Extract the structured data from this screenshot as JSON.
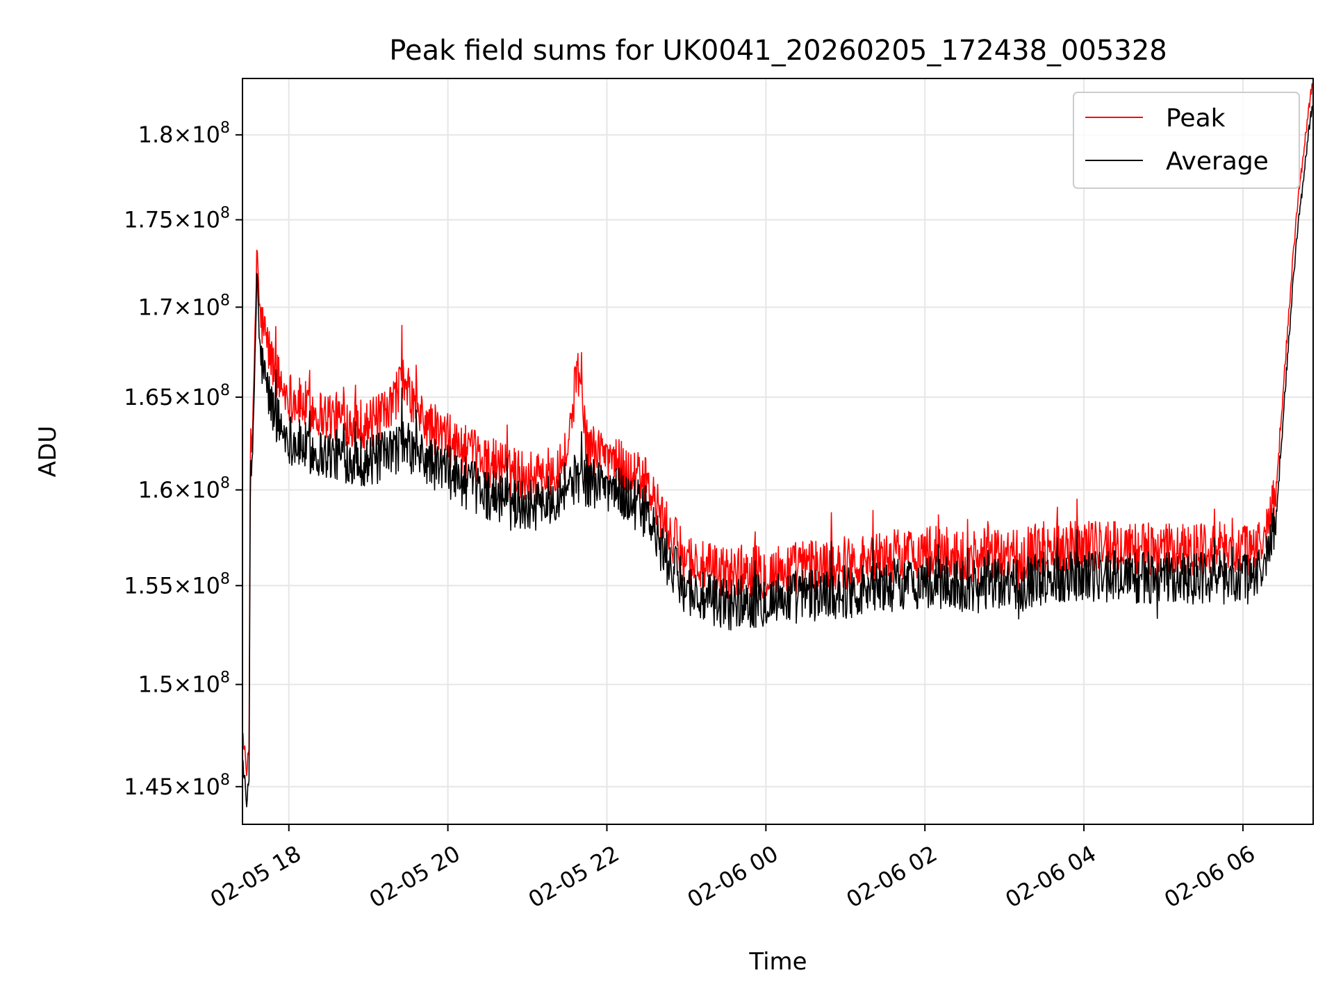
{
  "chart_data": {
    "type": "line",
    "title": "Peak field sums for UK0041_20260205_172438_005328",
    "xlabel": "Time",
    "ylabel": "ADU",
    "x_axis_kind": "datetime",
    "xlim": [
      "2026-02-05 17:25",
      "2026-02-06 06:53"
    ],
    "ylim": [
      143200000,
      183400000
    ],
    "y_scale": "log",
    "grid": true,
    "legend_position": "top-right",
    "x_ticks": [
      {
        "value": "2026-02-05 18:00",
        "label": "02-05 18"
      },
      {
        "value": "2026-02-05 20:00",
        "label": "02-05 20"
      },
      {
        "value": "2026-02-05 22:00",
        "label": "02-05 22"
      },
      {
        "value": "2026-02-06 00:00",
        "label": "02-06 00"
      },
      {
        "value": "2026-02-06 02:00",
        "label": "02-06 02"
      },
      {
        "value": "2026-02-06 04:00",
        "label": "02-06 04"
      },
      {
        "value": "2026-02-06 06:00",
        "label": "02-06 06"
      }
    ],
    "y_ticks": [
      {
        "value": 145000000,
        "mantissa": "1.45",
        "exp": "8"
      },
      {
        "value": 150000000,
        "mantissa": "1.5",
        "exp": "8"
      },
      {
        "value": 155000000,
        "mantissa": "1.55",
        "exp": "8"
      },
      {
        "value": 160000000,
        "mantissa": "1.6",
        "exp": "8"
      },
      {
        "value": 165000000,
        "mantissa": "1.65",
        "exp": "8"
      },
      {
        "value": 170000000,
        "mantissa": "1.7",
        "exp": "8"
      },
      {
        "value": 175000000,
        "mantissa": "1.75",
        "exp": "8"
      },
      {
        "value": 180000000,
        "mantissa": "1.8",
        "exp": "8"
      }
    ],
    "series": [
      {
        "name": "Peak",
        "color": "#ff0000",
        "points": [
          [
            "2026-02-05 17:25",
            147800000
          ],
          [
            "2026-02-05 17:28",
            145500000
          ],
          [
            "2026-02-05 17:30",
            147000000
          ],
          [
            "2026-02-05 17:31",
            164000000
          ],
          [
            "2026-02-05 17:32",
            161500000
          ],
          [
            "2026-02-05 17:34",
            167000000
          ],
          [
            "2026-02-05 17:36",
            173800000
          ],
          [
            "2026-02-05 17:38",
            169500000
          ],
          [
            "2026-02-05 17:42",
            168500000
          ],
          [
            "2026-02-05 17:47",
            167000000
          ],
          [
            "2026-02-05 17:55",
            165500000
          ],
          [
            "2026-02-05 18:05",
            164800000
          ],
          [
            "2026-02-05 18:20",
            164200000
          ],
          [
            "2026-02-05 18:40",
            163800000
          ],
          [
            "2026-02-05 19:00",
            163500000
          ],
          [
            "2026-02-05 19:15",
            164000000
          ],
          [
            "2026-02-05 19:25",
            166000000
          ],
          [
            "2026-02-05 19:40",
            163800000
          ],
          [
            "2026-02-05 20:00",
            162700000
          ],
          [
            "2026-02-05 20:15",
            162000000
          ],
          [
            "2026-02-05 20:30",
            161500000
          ],
          [
            "2026-02-05 20:45",
            161300000
          ],
          [
            "2026-02-05 21:00",
            160700000
          ],
          [
            "2026-02-05 21:15",
            160800000
          ],
          [
            "2026-02-05 21:30",
            162000000
          ],
          [
            "2026-02-05 21:38",
            166700000
          ],
          [
            "2026-02-05 21:45",
            162300000
          ],
          [
            "2026-02-05 22:00",
            162000000
          ],
          [
            "2026-02-05 22:15",
            161000000
          ],
          [
            "2026-02-05 22:30",
            160300000
          ],
          [
            "2026-02-05 22:40",
            158700000
          ],
          [
            "2026-02-05 22:50",
            157300000
          ],
          [
            "2026-02-05 23:00",
            156500000
          ],
          [
            "2026-02-05 23:15",
            155800000
          ],
          [
            "2026-02-05 23:30",
            155700000
          ],
          [
            "2026-02-05 23:45",
            155800000
          ],
          [
            "2026-02-06 00:00",
            155700000
          ],
          [
            "2026-02-06 00:30",
            156000000
          ],
          [
            "2026-02-06 01:00",
            156200000
          ],
          [
            "2026-02-06 01:30",
            156500000
          ],
          [
            "2026-02-06 02:00",
            156800000
          ],
          [
            "2026-02-06 02:30",
            156500000
          ],
          [
            "2026-02-06 03:00",
            156500000
          ],
          [
            "2026-02-06 03:30",
            157000000
          ],
          [
            "2026-02-06 04:00",
            157200000
          ],
          [
            "2026-02-06 04:30",
            157000000
          ],
          [
            "2026-02-06 05:00",
            156800000
          ],
          [
            "2026-02-06 05:30",
            157000000
          ],
          [
            "2026-02-06 06:00",
            156800000
          ],
          [
            "2026-02-06 06:15",
            157200000
          ],
          [
            "2026-02-06 06:25",
            160000000
          ],
          [
            "2026-02-06 06:30",
            165000000
          ],
          [
            "2026-02-06 06:35",
            170000000
          ],
          [
            "2026-02-06 06:40",
            175000000
          ],
          [
            "2026-02-06 06:45",
            178500000
          ],
          [
            "2026-02-06 06:50",
            181800000
          ],
          [
            "2026-02-06 06:53",
            183400000
          ]
        ]
      },
      {
        "name": "Average",
        "color": "#000000",
        "points": [
          [
            "2026-02-05 17:25",
            146500000
          ],
          [
            "2026-02-05 17:28",
            144000000
          ],
          [
            "2026-02-05 17:30",
            145500000
          ],
          [
            "2026-02-05 17:31",
            162000000
          ],
          [
            "2026-02-05 17:32",
            160500000
          ],
          [
            "2026-02-05 17:34",
            165500000
          ],
          [
            "2026-02-05 17:36",
            172500000
          ],
          [
            "2026-02-05 17:38",
            167500000
          ],
          [
            "2026-02-05 17:42",
            166000000
          ],
          [
            "2026-02-05 17:47",
            164500000
          ],
          [
            "2026-02-05 17:55",
            163200000
          ],
          [
            "2026-02-05 18:05",
            162500000
          ],
          [
            "2026-02-05 18:20",
            162000000
          ],
          [
            "2026-02-05 18:40",
            161800000
          ],
          [
            "2026-02-05 19:00",
            161500000
          ],
          [
            "2026-02-05 19:15",
            161800000
          ],
          [
            "2026-02-05 19:25",
            162500000
          ],
          [
            "2026-02-05 19:40",
            161700000
          ],
          [
            "2026-02-05 20:00",
            161000000
          ],
          [
            "2026-02-05 20:15",
            160300000
          ],
          [
            "2026-02-05 20:30",
            159800000
          ],
          [
            "2026-02-05 20:45",
            159500000
          ],
          [
            "2026-02-05 21:00",
            159200000
          ],
          [
            "2026-02-05 21:15",
            159300000
          ],
          [
            "2026-02-05 21:30",
            160400000
          ],
          [
            "2026-02-05 21:38",
            160600000
          ],
          [
            "2026-02-05 21:45",
            160500000
          ],
          [
            "2026-02-05 22:00",
            160300000
          ],
          [
            "2026-02-05 22:15",
            159600000
          ],
          [
            "2026-02-05 22:30",
            158800000
          ],
          [
            "2026-02-05 22:40",
            157000000
          ],
          [
            "2026-02-05 22:50",
            155800000
          ],
          [
            "2026-02-05 23:00",
            154900000
          ],
          [
            "2026-02-05 23:15",
            154200000
          ],
          [
            "2026-02-05 23:30",
            154100000
          ],
          [
            "2026-02-05 23:45",
            154200000
          ],
          [
            "2026-02-06 00:00",
            154300000
          ],
          [
            "2026-02-06 00:30",
            154500000
          ],
          [
            "2026-02-06 01:00",
            154700000
          ],
          [
            "2026-02-06 01:30",
            155000000
          ],
          [
            "2026-02-06 02:00",
            155200000
          ],
          [
            "2026-02-06 02:30",
            155000000
          ],
          [
            "2026-02-06 03:00",
            155000000
          ],
          [
            "2026-02-06 03:30",
            155400000
          ],
          [
            "2026-02-06 04:00",
            155600000
          ],
          [
            "2026-02-06 04:30",
            155500000
          ],
          [
            "2026-02-06 05:00",
            155300000
          ],
          [
            "2026-02-06 05:30",
            155500000
          ],
          [
            "2026-02-06 06:00",
            155300000
          ],
          [
            "2026-02-06 06:15",
            155800000
          ],
          [
            "2026-02-06 06:25",
            158500000
          ],
          [
            "2026-02-06 06:30",
            163500000
          ],
          [
            "2026-02-06 06:35",
            168500000
          ],
          [
            "2026-02-06 06:40",
            173500000
          ],
          [
            "2026-02-06 06:45",
            177000000
          ],
          [
            "2026-02-06 06:50",
            180500000
          ],
          [
            "2026-02-06 06:53",
            182000000
          ]
        ]
      }
    ]
  }
}
